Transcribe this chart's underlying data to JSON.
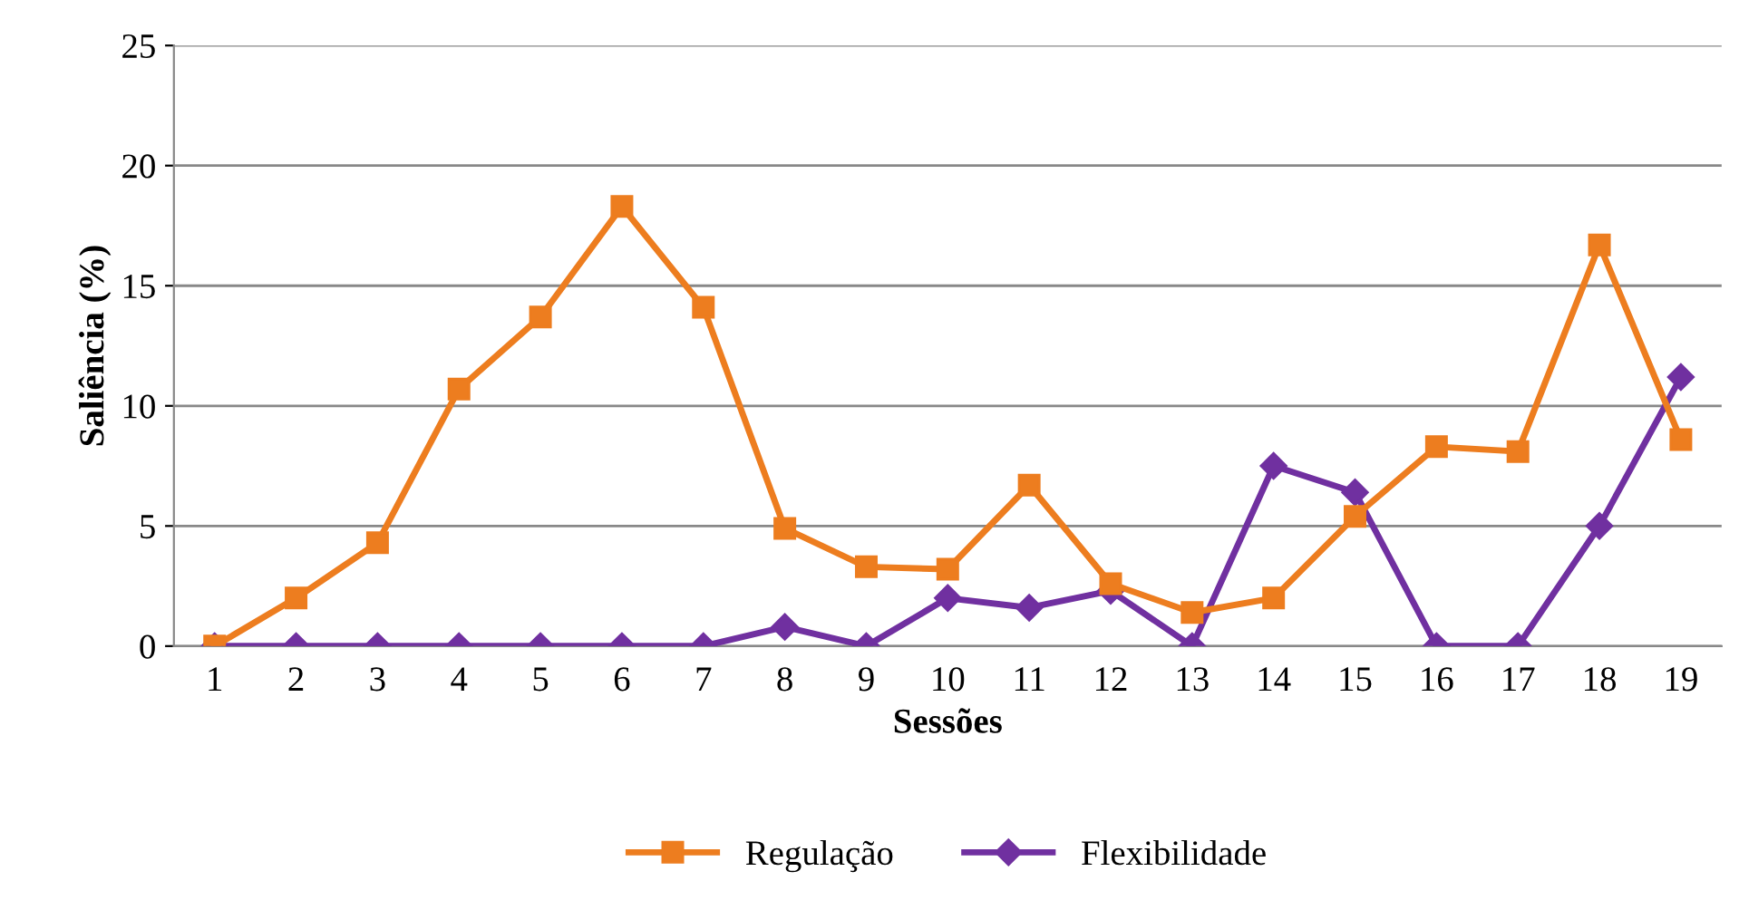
{
  "chart_data": {
    "type": "line",
    "xlabel": "Sessões",
    "ylabel": "Saliência (%)",
    "categories": [
      "1",
      "2",
      "3",
      "4",
      "5",
      "6",
      "7",
      "8",
      "9",
      "10",
      "11",
      "12",
      "13",
      "14",
      "15",
      "16",
      "17",
      "18",
      "19"
    ],
    "series": [
      {
        "name": "Regulação",
        "color": "#ed7d1f",
        "marker": "square",
        "values": [
          0,
          2.0,
          4.3,
          10.7,
          13.7,
          18.3,
          14.1,
          4.9,
          3.3,
          3.2,
          6.7,
          2.6,
          1.4,
          2.0,
          5.4,
          8.3,
          8.1,
          16.7,
          8.6
        ]
      },
      {
        "name": "Flexibilidade",
        "color": "#7030a0",
        "marker": "diamond",
        "values": [
          0,
          0,
          0,
          0,
          0,
          0,
          0,
          0.8,
          0,
          2.0,
          1.6,
          2.3,
          0,
          7.5,
          6.4,
          0,
          0,
          5.0,
          11.2
        ]
      }
    ],
    "ylim": [
      0,
      25
    ],
    "yticks": [
      0,
      5,
      10,
      15,
      20,
      25
    ],
    "grid": "y",
    "legend": "bottom",
    "line_style": "solid"
  }
}
